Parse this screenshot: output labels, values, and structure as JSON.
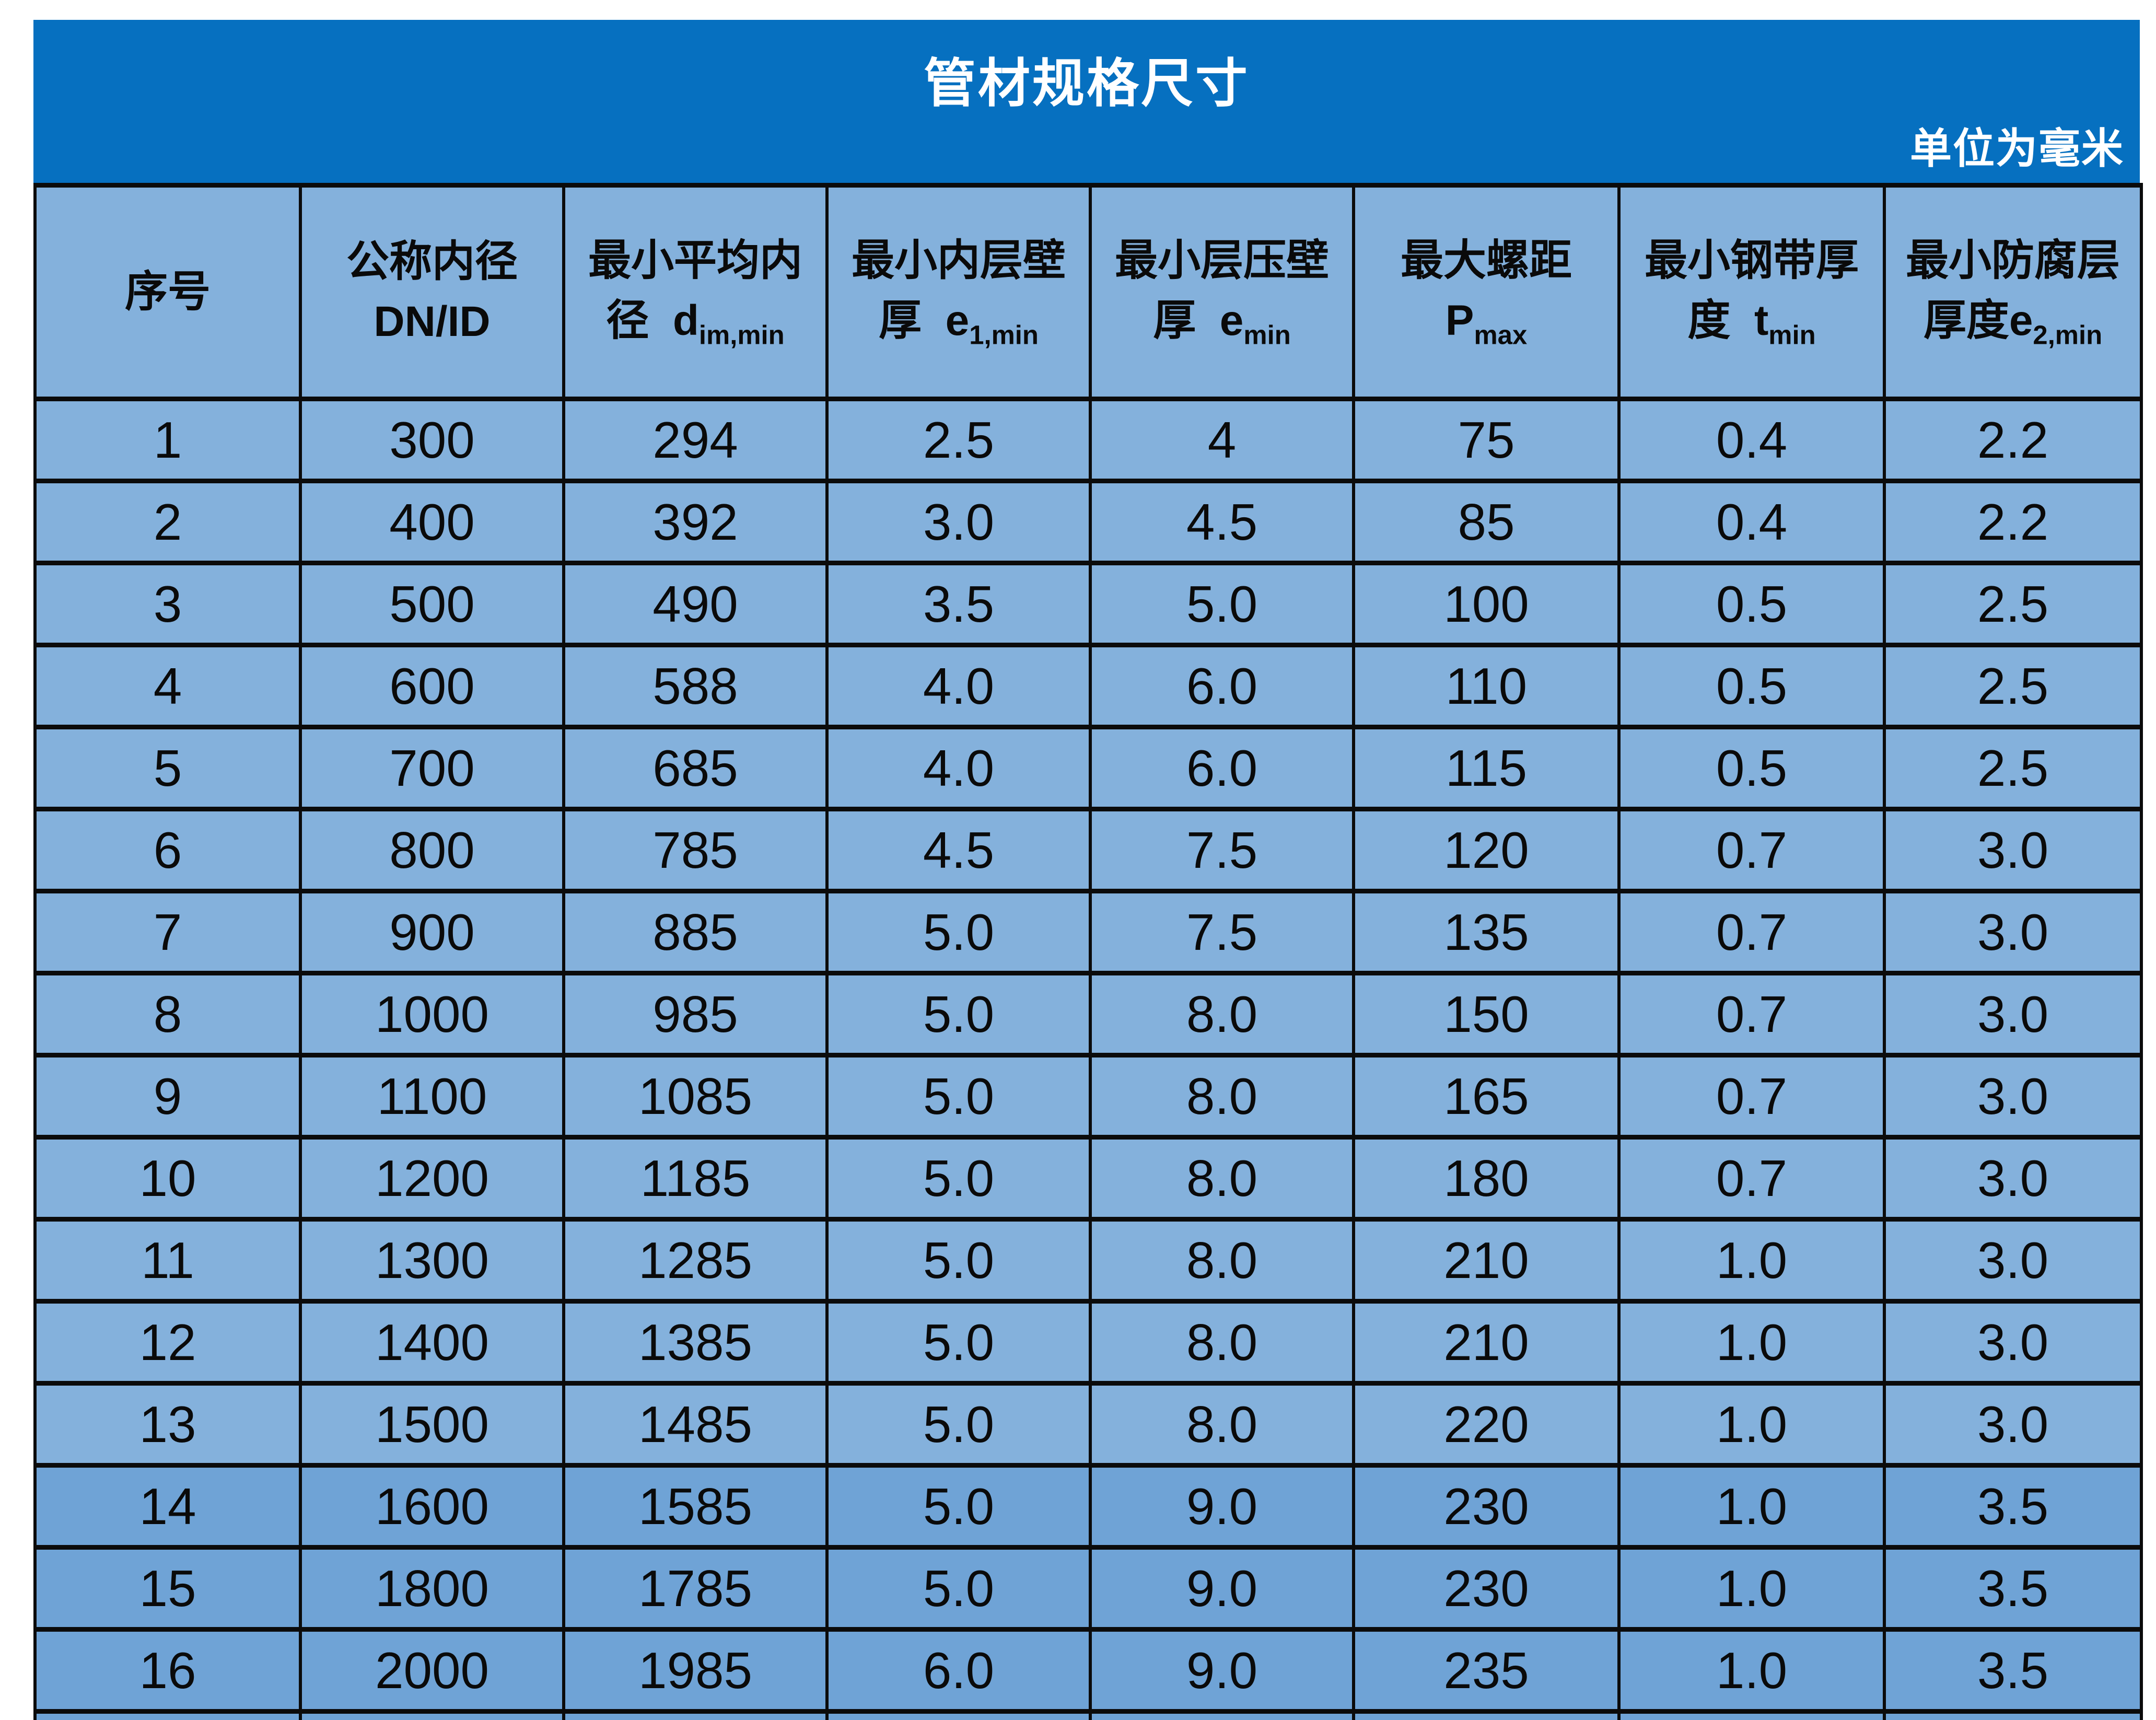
{
  "header_bar": {
    "title": "管材规格尺寸",
    "unit_note": "单位为毫米"
  },
  "table": {
    "columns": [
      {
        "line1": "序号",
        "line2": "",
        "sub": ""
      },
      {
        "line1": "公称内径",
        "line2": "DN/ID",
        "sub": ""
      },
      {
        "line1": "最小平均内",
        "line2": "径  d",
        "sub": "im,min"
      },
      {
        "line1": "最小内层壁",
        "line2": "厚  e",
        "sub": "1,min"
      },
      {
        "line1": "最小层压壁",
        "line2": "厚  e",
        "sub": "min"
      },
      {
        "line1": "最大螺距",
        "line2": "P",
        "sub": "max"
      },
      {
        "line1": "最小钢带厚",
        "line2": "度  t",
        "sub": "min"
      },
      {
        "line1": "最小防腐层",
        "line2": "厚度e",
        "sub": "2,min"
      }
    ],
    "rows": [
      [
        "1",
        "300",
        "294",
        "2.5",
        "4",
        "75",
        "0.4",
        "2.2"
      ],
      [
        "2",
        "400",
        "392",
        "3.0",
        "4.5",
        "85",
        "0.4",
        "2.2"
      ],
      [
        "3",
        "500",
        "490",
        "3.5",
        "5.0",
        "100",
        "0.5",
        "2.5"
      ],
      [
        "4",
        "600",
        "588",
        "4.0",
        "6.0",
        "110",
        "0.5",
        "2.5"
      ],
      [
        "5",
        "700",
        "685",
        "4.0",
        "6.0",
        "115",
        "0.5",
        "2.5"
      ],
      [
        "6",
        "800",
        "785",
        "4.5",
        "7.5",
        "120",
        "0.7",
        "3.0"
      ],
      [
        "7",
        "900",
        "885",
        "5.0",
        "7.5",
        "135",
        "0.7",
        "3.0"
      ],
      [
        "8",
        "1000",
        "985",
        "5.0",
        "8.0",
        "150",
        "0.7",
        "3.0"
      ],
      [
        "9",
        "1100",
        "1085",
        "5.0",
        "8.0",
        "165",
        "0.7",
        "3.0"
      ],
      [
        "10",
        "1200",
        "1185",
        "5.0",
        "8.0",
        "180",
        "0.7",
        "3.0"
      ],
      [
        "11",
        "1300",
        "1285",
        "5.0",
        "8.0",
        "210",
        "1.0",
        "3.0"
      ],
      [
        "12",
        "1400",
        "1385",
        "5.0",
        "8.0",
        "210",
        "1.0",
        "3.0"
      ],
      [
        "13",
        "1500",
        "1485",
        "5.0",
        "8.0",
        "220",
        "1.0",
        "3.0"
      ],
      [
        "14",
        "1600",
        "1585",
        "5.0",
        "9.0",
        "230",
        "1.0",
        "3.5"
      ],
      [
        "15",
        "1800",
        "1785",
        "5.0",
        "9.0",
        "230",
        "1.0",
        "3.5"
      ],
      [
        "16",
        "2000",
        "1985",
        "6.0",
        "9.0",
        "235",
        "1.0",
        "3.5"
      ]
    ],
    "dark_rows_start_index": 13
  },
  "colors": {
    "header_blue": "#0670C0",
    "cell_blue": "#84B1DC",
    "cell_blue_dark": "#6FA3D6",
    "border_black": "#0B0B0B"
  }
}
